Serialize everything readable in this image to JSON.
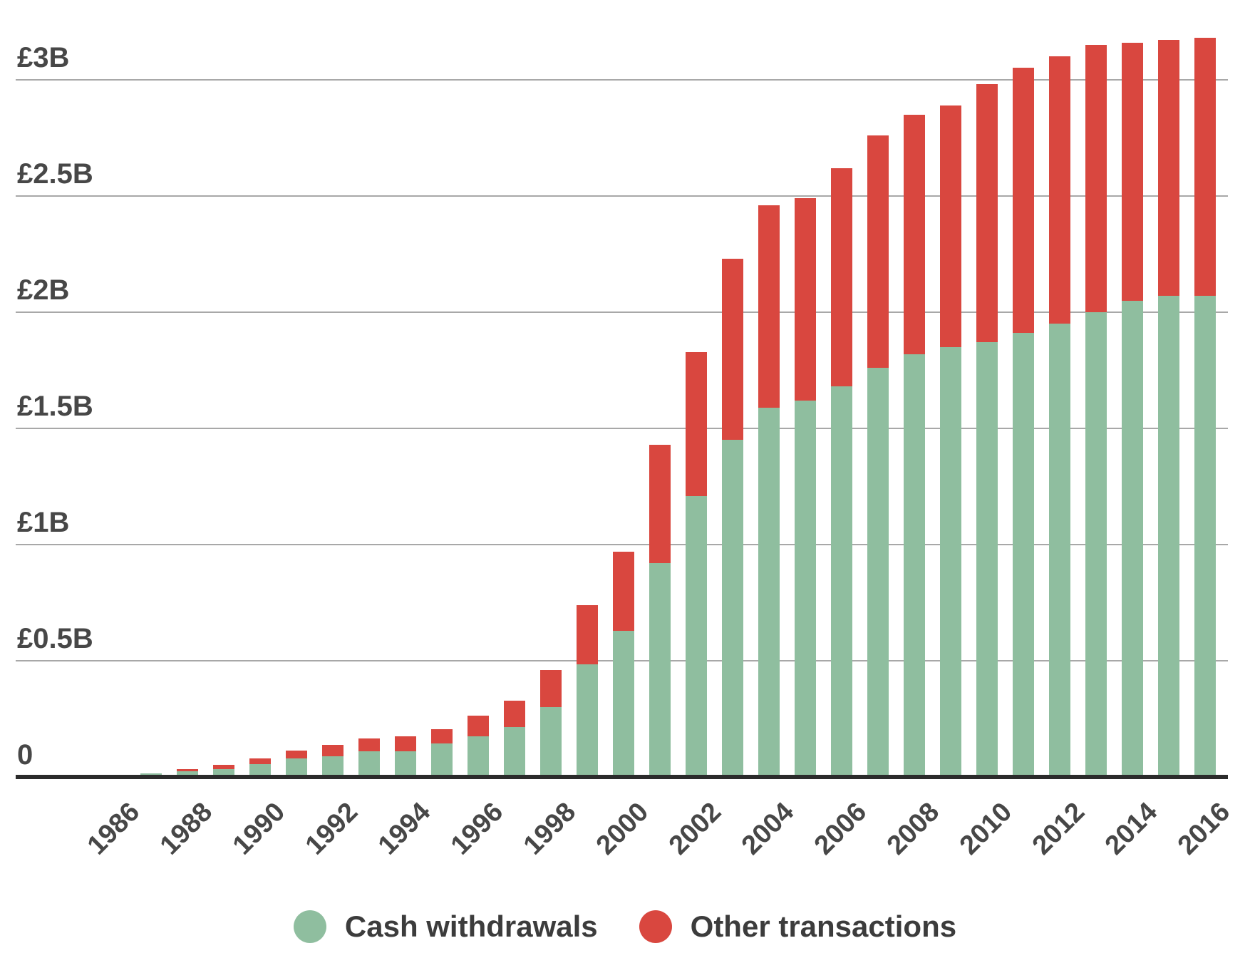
{
  "chart_data": {
    "type": "bar",
    "stacked": true,
    "title": "",
    "xlabel": "",
    "ylabel": "",
    "unit": "GBP billions",
    "categories": [
      1986,
      1987,
      1988,
      1989,
      1990,
      1991,
      1992,
      1993,
      1994,
      1995,
      1996,
      1997,
      1998,
      1999,
      2000,
      2001,
      2002,
      2003,
      2004,
      2005,
      2006,
      2007,
      2008,
      2009,
      2010,
      2011,
      2012,
      2013,
      2014,
      2015,
      2016
    ],
    "series": [
      {
        "name": "Cash withdrawals",
        "color": "#8fbe9f",
        "values": [
          0.005,
          0.015,
          0.025,
          0.035,
          0.055,
          0.08,
          0.09,
          0.11,
          0.11,
          0.145,
          0.175,
          0.215,
          0.3,
          0.485,
          0.63,
          0.92,
          1.21,
          1.45,
          1.59,
          1.62,
          1.68,
          1.76,
          1.82,
          1.85,
          1.87,
          1.91,
          1.95,
          2.0,
          2.05,
          2.07,
          2.07
        ]
      },
      {
        "name": "Other transactions",
        "color": "#d9473f",
        "values": [
          0,
          0,
          0.01,
          0.018,
          0.025,
          0.035,
          0.05,
          0.055,
          0.065,
          0.06,
          0.09,
          0.115,
          0.16,
          0.255,
          0.34,
          0.51,
          0.62,
          0.78,
          0.87,
          0.87,
          0.94,
          1.0,
          1.03,
          1.04,
          1.11,
          1.14,
          1.15,
          1.15,
          1.11,
          1.1,
          1.11
        ]
      }
    ],
    "y_ticks": [
      {
        "label": "£3B",
        "value": 3
      },
      {
        "label": "£2.5B",
        "value": 2.5
      },
      {
        "label": "£2B",
        "value": 2
      },
      {
        "label": "£1.5B",
        "value": 1.5
      },
      {
        "label": "£1B",
        "value": 1
      },
      {
        "label": "£0.5B",
        "value": 0.5
      },
      {
        "label": "0",
        "value": 0
      }
    ],
    "x_tick_years": [
      1986,
      1988,
      1990,
      1992,
      1994,
      1996,
      1998,
      2000,
      2002,
      2004,
      2006,
      2008,
      2010,
      2012,
      2014,
      2016
    ],
    "ylim": [
      0,
      3.3
    ],
    "grid": true,
    "legend_position": "bottom"
  },
  "legend": {
    "items": [
      {
        "label": "Cash withdrawals",
        "color": "#8fbe9f"
      },
      {
        "label": "Other transactions",
        "color": "#d9473f"
      }
    ]
  },
  "colors": {
    "grid": "#a8a8a8",
    "axis_line": "#2b2b2b",
    "tick_text": "#474747",
    "legend_text": "#3c3c3c",
    "background": "#ffffff"
  }
}
